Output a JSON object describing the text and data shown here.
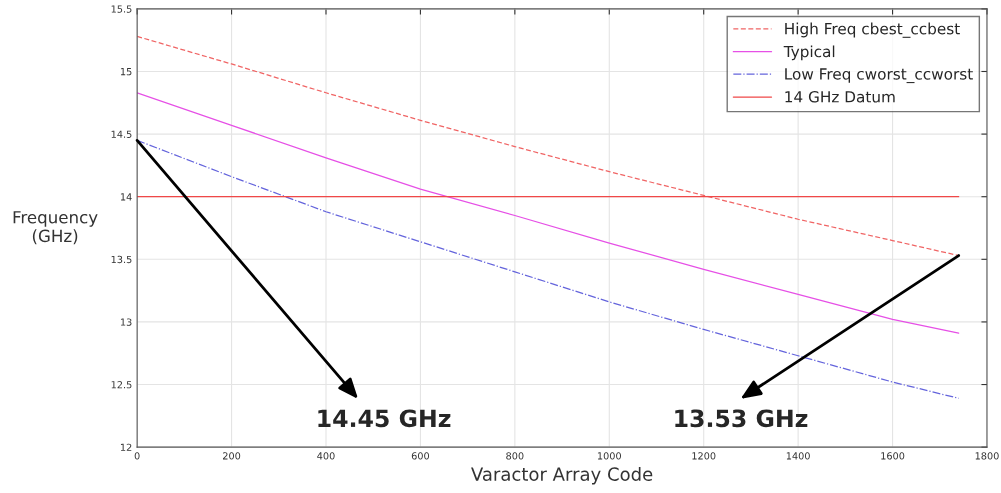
{
  "chart_data": {
    "type": "line",
    "xlabel": "Varactor Array Code",
    "ylabel": "Frequency\n(GHz)",
    "x": [
      0,
      200,
      400,
      600,
      800,
      1000,
      1200,
      1400,
      1600,
      1740
    ],
    "series": [
      {
        "name": "High Freq cbest_ccbest",
        "color": "#f06464",
        "line_style": "dashed",
        "values": [
          15.28,
          15.06,
          14.83,
          14.61,
          14.4,
          14.2,
          14.01,
          13.82,
          13.65,
          13.53
        ]
      },
      {
        "name": "Typical",
        "color": "#e650e6",
        "line_style": "solid",
        "values": [
          14.83,
          14.57,
          14.31,
          14.06,
          13.85,
          13.63,
          13.42,
          13.22,
          13.02,
          12.91
        ]
      },
      {
        "name": "Low Freq cworst_ccworst",
        "color": "#6464dc",
        "line_style": "dashdot",
        "values": [
          14.45,
          14.16,
          13.88,
          13.64,
          13.4,
          13.16,
          12.94,
          12.73,
          12.52,
          12.39
        ]
      },
      {
        "name": "14 GHz Datum",
        "color": "#f04848",
        "line_style": "solid",
        "x": [
          0,
          1740
        ],
        "values": [
          14,
          14
        ]
      }
    ],
    "annotations": [
      {
        "text": "14.45 GHz",
        "x": 0,
        "y": 14.45
      },
      {
        "text": "13.53 GHz",
        "x": 1740,
        "y": 13.53
      }
    ],
    "xlim": [
      0,
      1800
    ],
    "xticks": [
      0,
      200,
      400,
      600,
      800,
      1000,
      1200,
      1400,
      1600,
      1800
    ],
    "ylim": [
      12,
      15.5
    ],
    "yticks": [
      12,
      12.5,
      13,
      13.5,
      14,
      14.5,
      15,
      15.5
    ],
    "grid": true,
    "legend": "top right",
    "marker": "none"
  }
}
